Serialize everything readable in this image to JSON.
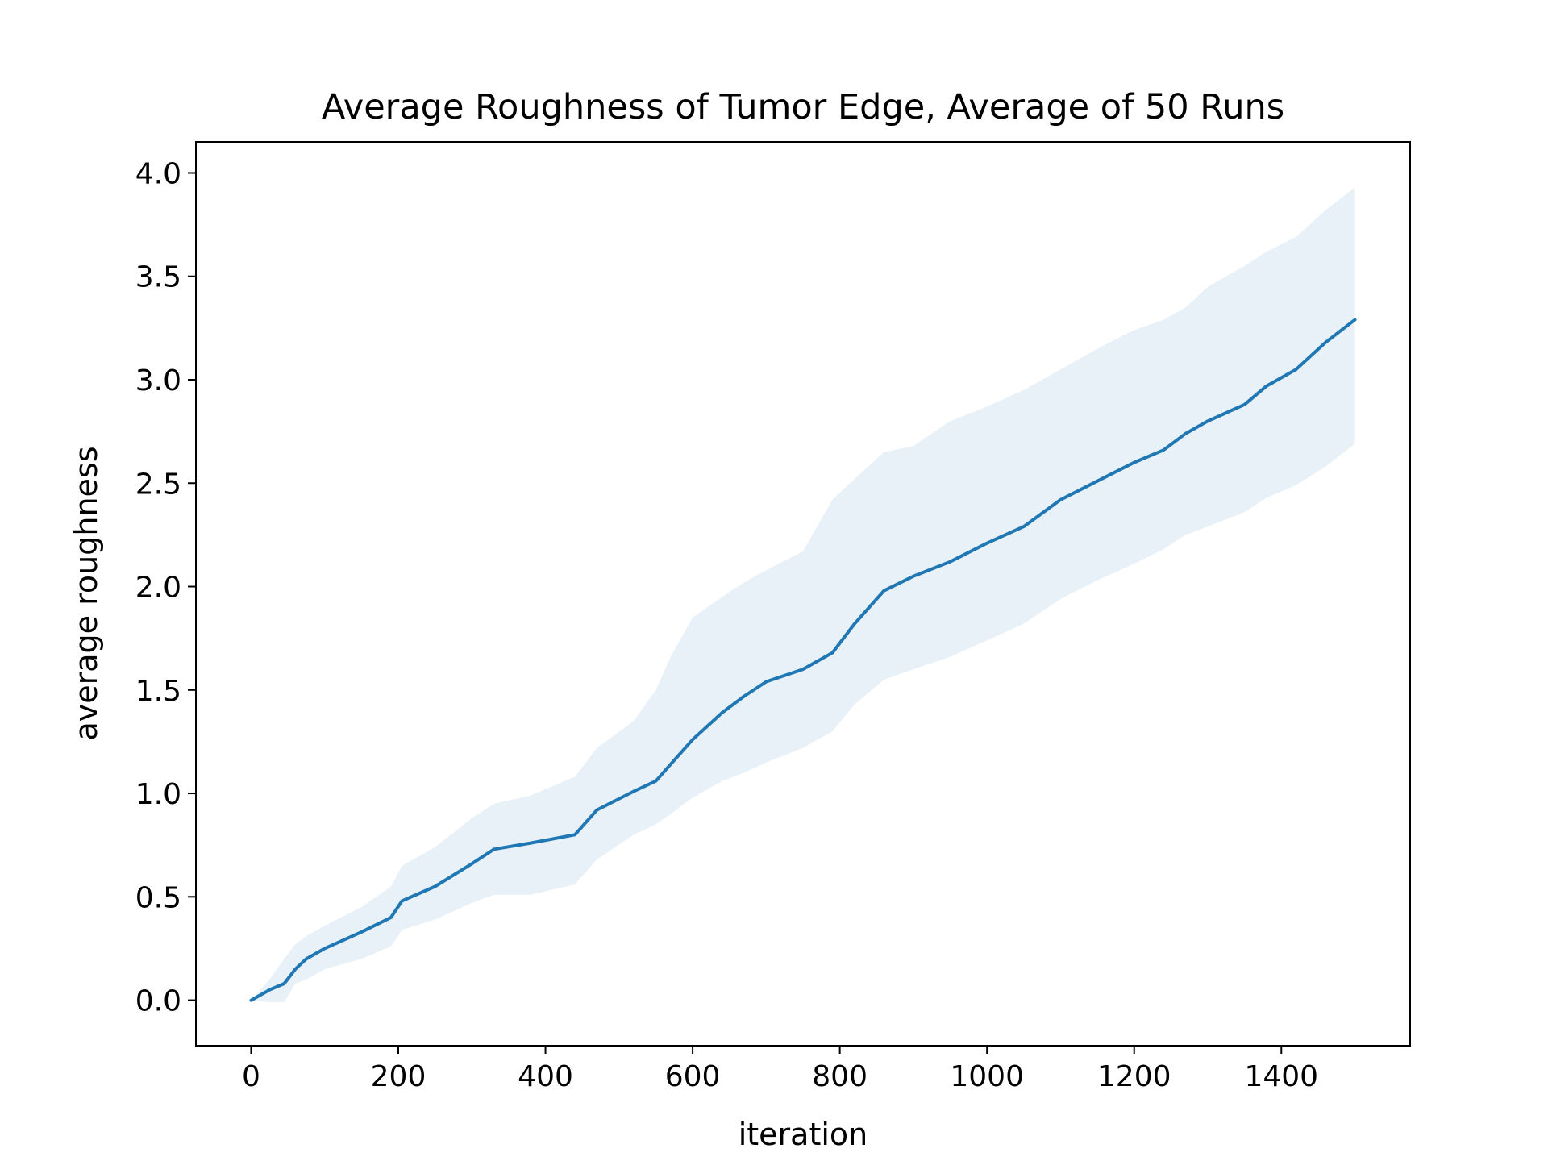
{
  "chart_data": {
    "type": "line",
    "title": "Average Roughness of Tumor Edge, Average of 50 Runs",
    "xlabel": "iteration",
    "ylabel": "average roughness",
    "xlim": [
      -75,
      1575
    ],
    "ylim": [
      -0.22,
      4.15
    ],
    "xticks": [
      0,
      200,
      400,
      600,
      800,
      1000,
      1200,
      1400
    ],
    "xtick_labels": [
      "0",
      "200",
      "400",
      "600",
      "800",
      "1000",
      "1200",
      "1400"
    ],
    "yticks": [
      0.0,
      0.5,
      1.0,
      1.5,
      2.0,
      2.5,
      3.0,
      3.5,
      4.0
    ],
    "ytick_labels": [
      "0.0",
      "0.5",
      "1.0",
      "1.5",
      "2.0",
      "2.5",
      "3.0",
      "3.5",
      "4.0"
    ],
    "grid": false,
    "series": [
      {
        "color": "#1f77b4",
        "band_color": "#1f77b4",
        "band_opacity": 0.1,
        "x": [
          0,
          25,
          45,
          60,
          75,
          100,
          150,
          190,
          205,
          250,
          300,
          330,
          380,
          440,
          470,
          520,
          550,
          570,
          600,
          640,
          670,
          700,
          750,
          790,
          820,
          860,
          900,
          950,
          1000,
          1050,
          1100,
          1150,
          1200,
          1240,
          1270,
          1300,
          1350,
          1380,
          1420,
          1460,
          1500
        ],
        "y": [
          0.0,
          0.05,
          0.08,
          0.15,
          0.2,
          0.25,
          0.33,
          0.4,
          0.48,
          0.55,
          0.66,
          0.73,
          0.76,
          0.8,
          0.92,
          1.01,
          1.06,
          1.14,
          1.26,
          1.39,
          1.47,
          1.54,
          1.6,
          1.68,
          1.82,
          1.98,
          2.05,
          2.12,
          2.21,
          2.29,
          2.42,
          2.51,
          2.6,
          2.66,
          2.74,
          2.8,
          2.88,
          2.97,
          3.05,
          3.18,
          3.29
        ],
        "lower": [
          0.0,
          -0.01,
          -0.01,
          0.08,
          0.1,
          0.15,
          0.2,
          0.26,
          0.34,
          0.39,
          0.47,
          0.51,
          0.51,
          0.56,
          0.68,
          0.8,
          0.85,
          0.9,
          0.98,
          1.06,
          1.1,
          1.15,
          1.22,
          1.3,
          1.43,
          1.55,
          1.6,
          1.66,
          1.74,
          1.82,
          1.94,
          2.03,
          2.11,
          2.18,
          2.25,
          2.29,
          2.36,
          2.43,
          2.49,
          2.58,
          2.69
        ],
        "upper": [
          0.0,
          0.1,
          0.2,
          0.27,
          0.31,
          0.36,
          0.45,
          0.55,
          0.65,
          0.74,
          0.88,
          0.95,
          0.99,
          1.08,
          1.22,
          1.35,
          1.5,
          1.66,
          1.85,
          1.95,
          2.02,
          2.08,
          2.17,
          2.42,
          2.52,
          2.65,
          2.68,
          2.8,
          2.87,
          2.95,
          3.05,
          3.15,
          3.24,
          3.29,
          3.35,
          3.45,
          3.55,
          3.62,
          3.69,
          3.82,
          3.93
        ]
      }
    ]
  }
}
